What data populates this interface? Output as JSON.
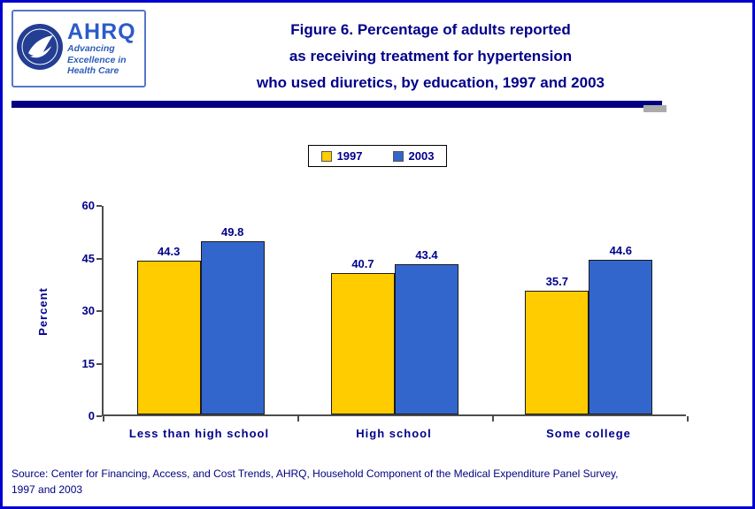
{
  "header": {
    "logo": {
      "org_abbr": "AHRQ",
      "tagline": [
        "Advancing",
        "Excellence in",
        "Health Care"
      ]
    },
    "title_lines": [
      "Figure 6. Percentage of adults reported",
      "as receiving treatment for hypertension",
      "who used diuretics, by education, 1997 and 2003"
    ],
    "title_color": "#00008B"
  },
  "chart_data": {
    "type": "bar",
    "categories": [
      "Less than high school",
      "High school",
      "Some college"
    ],
    "series": [
      {
        "name": "1997",
        "color": "#FFCC00",
        "values": [
          44.3,
          40.7,
          35.7
        ]
      },
      {
        "name": "2003",
        "color": "#3366CC",
        "values": [
          49.8,
          43.4,
          44.6
        ]
      }
    ],
    "title": "Figure 6. Percentage of adults reported as receiving treatment for hypertension who used diuretics, by education, 1997 and 2003",
    "xlabel": "",
    "ylabel": "Percent",
    "ylim": [
      0,
      60
    ],
    "yticks": [
      0,
      15,
      30,
      45,
      60
    ],
    "legend_position": "top",
    "grid": false,
    "label_color": "#00008B",
    "bar_border_color": "#1a1a1a"
  },
  "footer": {
    "source_lines": [
      "Source: Center for Financing, Access, and Cost Trends, AHRQ, Household Component of the Medical Expenditure Panel Survey,",
      "1997 and 2003"
    ]
  }
}
